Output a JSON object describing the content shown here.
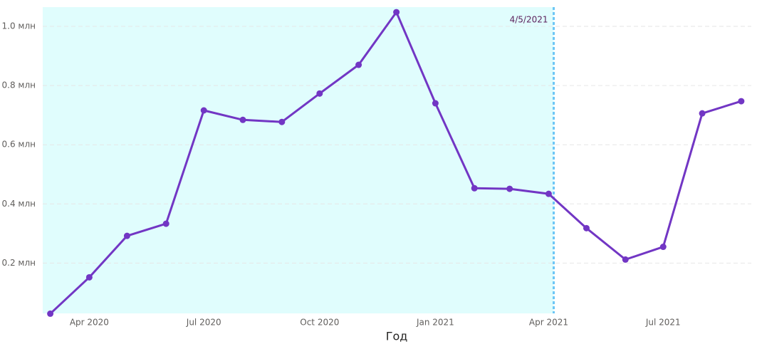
{
  "chart_data": {
    "type": "line",
    "x_label": "Год",
    "x": [
      "2020-03-01",
      "2020-04-01",
      "2020-05-01",
      "2020-06-01",
      "2020-07-01",
      "2020-08-01",
      "2020-09-01",
      "2020-10-01",
      "2020-11-01",
      "2020-12-01",
      "2021-01-01",
      "2021-02-01",
      "2021-03-01",
      "2021-04-01",
      "2021-05-01",
      "2021-06-01",
      "2021-07-01",
      "2021-08-01",
      "2021-09-01"
    ],
    "series": [
      {
        "color": "#7236c4",
        "values": [
          0.029,
          0.152,
          0.292,
          0.333,
          0.716,
          0.684,
          0.677,
          0.773,
          0.87,
          1.048,
          0.74,
          0.453,
          0.451,
          0.434,
          0.318,
          0.212,
          0.255,
          0.706,
          0.747
        ]
      }
    ],
    "xlim": [
      "2020-02-24",
      "2021-09-09"
    ],
    "xticks": [
      {
        "value": "2020-04-01",
        "label": "Apr 2020"
      },
      {
        "value": "2020-07-01",
        "label": "Jul 2020"
      },
      {
        "value": "2020-10-01",
        "label": "Oct 2020"
      },
      {
        "value": "2021-01-01",
        "label": "Jan 2021"
      },
      {
        "value": "2021-04-01",
        "label": "Apr 2021"
      },
      {
        "value": "2021-07-01",
        "label": "Jul 2021"
      }
    ],
    "ylim": [
      0.03,
      1.065
    ],
    "yticks": [
      {
        "value": 0.2,
        "label": "0.2 млн"
      },
      {
        "value": 0.4,
        "label": "0.4 млн"
      },
      {
        "value": 0.6,
        "label": "0.6 млн"
      },
      {
        "value": 0.8,
        "label": "0.8 млн"
      },
      {
        "value": 1.0,
        "label": "1.0 млн"
      }
    ],
    "grid": true,
    "reference_line": {
      "x": "2021-04-05",
      "label": "4/5/2021",
      "color": "#6cc6f5",
      "label_color": "#5b1f5b",
      "shade_color": "#e0fdfd"
    }
  }
}
